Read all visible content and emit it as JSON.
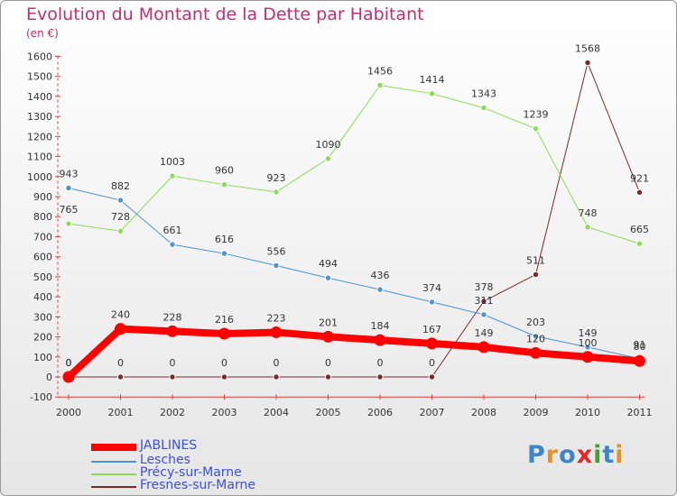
{
  "header": {
    "title": "Evolution du Montant de la Dette par Habitant",
    "subtitle": "(en €)"
  },
  "logo": {
    "text": "Proxiti",
    "letter_colors": [
      "#3f86c8",
      "#e8921c",
      "#3f86c8",
      "#e02a2a",
      "#4aa02c",
      "#3f86c8",
      "#e8921c"
    ]
  },
  "chart_data": {
    "type": "line",
    "title": "Evolution du Montant de la Dette par Habitant",
    "ylabel": "(en €)",
    "x": [
      "2000",
      "2001",
      "2002",
      "2003",
      "2004",
      "2005",
      "2006",
      "2007",
      "2008",
      "2009",
      "2010",
      "2011"
    ],
    "ylim": [
      -100,
      1600
    ],
    "yticks": [
      -100,
      0,
      100,
      200,
      300,
      400,
      500,
      600,
      700,
      800,
      900,
      1000,
      1100,
      1200,
      1300,
      1400,
      1500,
      1600
    ],
    "grid": false,
    "legend_position": "bottom-left",
    "series": [
      {
        "name": "JABLINES",
        "color": "#ff0000",
        "line_width": 8,
        "marker_radius": 6,
        "marker_stroke": "#ff0000",
        "values": [
          0,
          240,
          228,
          216,
          223,
          201,
          184,
          167,
          149,
          120,
          100,
          80
        ],
        "labels": [
          "0",
          "240",
          "228",
          "216",
          "223",
          "201",
          "184",
          "167",
          "149",
          "120",
          "100",
          "80"
        ]
      },
      {
        "name": "Lesches",
        "color": "#4a94d4",
        "line_width": 1,
        "marker_radius": 3.2,
        "marker_stroke": "#ffffff",
        "values": [
          943,
          882,
          661,
          616,
          556,
          494,
          436,
          374,
          311,
          203,
          149,
          91
        ],
        "labels": [
          "943",
          "882",
          "661",
          "616",
          "556",
          "494",
          "436",
          "374",
          "311",
          "203",
          "149",
          "91"
        ]
      },
      {
        "name": "Précy-sur-Marne",
        "color": "#88dd55",
        "line_width": 1,
        "marker_radius": 3.2,
        "marker_stroke": "#ffffff",
        "values": [
          765,
          728,
          1003,
          960,
          923,
          1090,
          1456,
          1414,
          1343,
          1239,
          748,
          665
        ],
        "labels": [
          "765",
          "728",
          "1003",
          "960",
          "923",
          "1090",
          "1456",
          "1414",
          "1343",
          "1239",
          "748",
          "665"
        ]
      },
      {
        "name": "Fresnes-sur-Marne",
        "color": "#7a2a2a",
        "line_width": 1,
        "marker_radius": 3.2,
        "marker_stroke": "#ffffff",
        "values": [
          0,
          0,
          0,
          0,
          0,
          0,
          0,
          0,
          378,
          511,
          1568,
          921
        ],
        "labels": [
          "0",
          "0",
          "0",
          "0",
          "0",
          "0",
          "0",
          "0",
          "378",
          "511",
          "1568",
          "921"
        ]
      }
    ]
  }
}
